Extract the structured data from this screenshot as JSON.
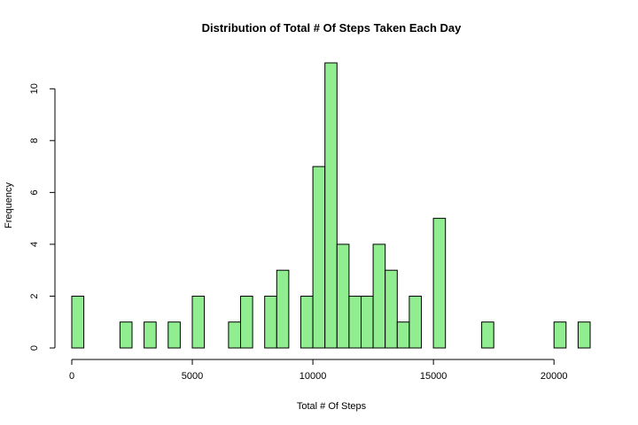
{
  "chart_data": {
    "type": "bar",
    "title": "Distribution of Total # Of Steps Taken Each Day",
    "xlabel": "Total # Of Steps",
    "ylabel": "Frequency",
    "bin_width": 500,
    "bins": [
      {
        "start": 0,
        "count": 2
      },
      {
        "start": 2000,
        "count": 1
      },
      {
        "start": 3000,
        "count": 1
      },
      {
        "start": 4000,
        "count": 1
      },
      {
        "start": 5000,
        "count": 2
      },
      {
        "start": 6500,
        "count": 1
      },
      {
        "start": 7000,
        "count": 2
      },
      {
        "start": 8000,
        "count": 2
      },
      {
        "start": 8500,
        "count": 3
      },
      {
        "start": 9500,
        "count": 2
      },
      {
        "start": 10000,
        "count": 7
      },
      {
        "start": 10500,
        "count": 11
      },
      {
        "start": 11000,
        "count": 4
      },
      {
        "start": 11500,
        "count": 2
      },
      {
        "start": 12000,
        "count": 2
      },
      {
        "start": 12500,
        "count": 4
      },
      {
        "start": 13000,
        "count": 3
      },
      {
        "start": 13500,
        "count": 1
      },
      {
        "start": 14000,
        "count": 2
      },
      {
        "start": 15000,
        "count": 5
      },
      {
        "start": 17000,
        "count": 1
      },
      {
        "start": 20000,
        "count": 1
      },
      {
        "start": 21000,
        "count": 1
      }
    ],
    "xlim": [
      0,
      21500
    ],
    "ylim": [
      0,
      11
    ],
    "x_ticks": [
      "0",
      "5000",
      "10000",
      "15000",
      "20000"
    ],
    "y_ticks": [
      "0",
      "2",
      "4",
      "6",
      "8",
      "10"
    ],
    "grid": false,
    "colors": {
      "bar_fill": "#90EE90",
      "bar_stroke": "#000000"
    }
  }
}
